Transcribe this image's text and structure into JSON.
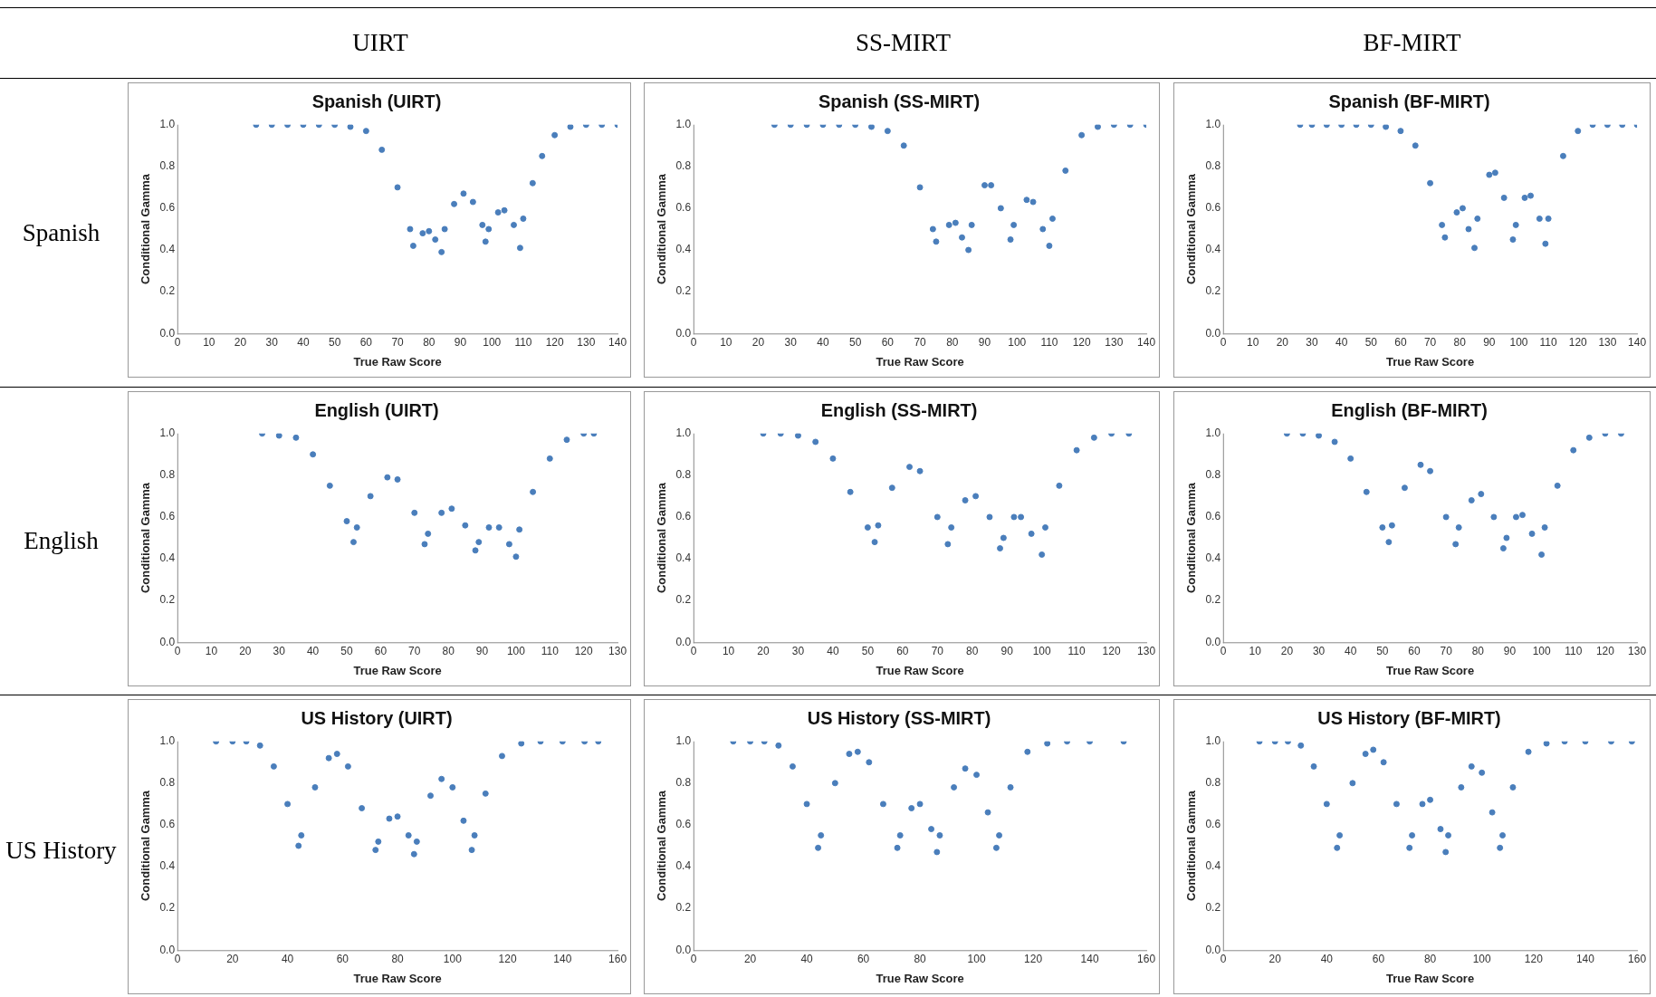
{
  "chart_data": [
    {
      "type": "other",
      "annotations": [
        "UIRT",
        "SS-MIRT",
        "BF-MIRT",
        "Spanish",
        "English",
        "US History"
      ]
    },
    {
      "type": "scatter",
      "title": "Spanish (UIRT)",
      "xlabel": "True Raw Score",
      "ylabel": "Conditional Gamma",
      "color": "#4a7ebb",
      "marker": "circle",
      "grid": false,
      "xlim": [
        0,
        140
      ],
      "xticks": [
        0,
        10,
        20,
        30,
        40,
        50,
        60,
        70,
        80,
        90,
        100,
        110,
        120,
        130,
        140
      ],
      "ylim": [
        0,
        1
      ],
      "yticks": [
        {
          "value": 0,
          "label": "0.0"
        },
        {
          "value": 0.2,
          "label": "0.2"
        },
        {
          "value": 0.4,
          "label": "0.4"
        },
        {
          "value": 0.6,
          "label": "0.6"
        },
        {
          "value": 0.8,
          "label": "0.8"
        },
        {
          "value": 1,
          "label": "1.0"
        }
      ],
      "x": [
        25,
        30,
        35,
        40,
        45,
        50,
        55,
        60,
        65,
        70,
        74,
        75,
        78,
        80,
        82,
        84,
        85,
        88,
        91,
        94,
        97,
        98,
        99,
        102,
        104,
        107,
        109,
        110,
        113,
        116,
        120,
        125,
        130,
        135,
        140
      ],
      "values": [
        1,
        1,
        1,
        1,
        1,
        1,
        0.99,
        0.97,
        0.88,
        0.7,
        0.5,
        0.42,
        0.48,
        0.49,
        0.45,
        0.39,
        0.5,
        0.62,
        0.67,
        0.63,
        0.52,
        0.44,
        0.5,
        0.58,
        0.59,
        0.52,
        0.41,
        0.55,
        0.72,
        0.85,
        0.95,
        0.99,
        1,
        1,
        1
      ]
    },
    {
      "type": "scatter",
      "title": "Spanish (SS-MIRT)",
      "xlabel": "True Raw Score",
      "ylabel": "Conditional Gamma",
      "color": "#4a7ebb",
      "marker": "circle",
      "grid": false,
      "xlim": [
        0,
        140
      ],
      "xticks": [
        0,
        10,
        20,
        30,
        40,
        50,
        60,
        70,
        80,
        90,
        100,
        110,
        120,
        130,
        140
      ],
      "ylim": [
        0,
        1
      ],
      "yticks": [
        {
          "value": 0,
          "label": "0.0"
        },
        {
          "value": 0.2,
          "label": "0.2"
        },
        {
          "value": 0.4,
          "label": "0.4"
        },
        {
          "value": 0.6,
          "label": "0.6"
        },
        {
          "value": 0.8,
          "label": "0.8"
        },
        {
          "value": 1,
          "label": "1.0"
        }
      ],
      "x": [
        25,
        30,
        35,
        40,
        45,
        50,
        55,
        60,
        65,
        70,
        74,
        75,
        79,
        81,
        83,
        85,
        86,
        90,
        92,
        95,
        98,
        99,
        103,
        105,
        108,
        110,
        111,
        115,
        120,
        125,
        130,
        135,
        140
      ],
      "values": [
        1,
        1,
        1,
        1,
        1,
        1,
        0.99,
        0.97,
        0.9,
        0.7,
        0.5,
        0.44,
        0.52,
        0.53,
        0.46,
        0.4,
        0.52,
        0.71,
        0.71,
        0.6,
        0.45,
        0.52,
        0.64,
        0.63,
        0.5,
        0.42,
        0.55,
        0.78,
        0.95,
        0.99,
        1,
        1,
        1
      ]
    },
    {
      "type": "scatter",
      "title": "Spanish (BF-MIRT)",
      "xlabel": "True Raw Score",
      "ylabel": "Conditional Gamma",
      "color": "#4a7ebb",
      "marker": "circle",
      "grid": false,
      "xlim": [
        0,
        140
      ],
      "xticks": [
        0,
        10,
        20,
        30,
        40,
        50,
        60,
        70,
        80,
        90,
        100,
        110,
        120,
        130,
        140
      ],
      "ylim": [
        0,
        1
      ],
      "yticks": [
        {
          "value": 0,
          "label": "0.0"
        },
        {
          "value": 0.2,
          "label": "0.2"
        },
        {
          "value": 0.4,
          "label": "0.4"
        },
        {
          "value": 0.6,
          "label": "0.6"
        },
        {
          "value": 0.8,
          "label": "0.8"
        },
        {
          "value": 1,
          "label": "1.0"
        }
      ],
      "x": [
        26,
        30,
        35,
        40,
        45,
        50,
        55,
        60,
        65,
        70,
        74,
        75,
        79,
        81,
        83,
        85,
        86,
        90,
        92,
        95,
        98,
        99,
        102,
        104,
        107,
        109,
        110,
        115,
        120,
        125,
        130,
        135,
        140
      ],
      "values": [
        1,
        1,
        1,
        1,
        1,
        1,
        0.99,
        0.97,
        0.9,
        0.72,
        0.52,
        0.46,
        0.58,
        0.6,
        0.5,
        0.41,
        0.55,
        0.76,
        0.77,
        0.65,
        0.45,
        0.52,
        0.65,
        0.66,
        0.55,
        0.43,
        0.55,
        0.85,
        0.97,
        1,
        1,
        1,
        1
      ]
    },
    {
      "type": "scatter",
      "title": "English (UIRT)",
      "xlabel": "True Raw Score",
      "ylabel": "Conditional Gamma",
      "color": "#4a7ebb",
      "marker": "circle",
      "grid": false,
      "xlim": [
        0,
        130
      ],
      "xticks": [
        0,
        10,
        20,
        30,
        40,
        50,
        60,
        70,
        80,
        90,
        100,
        110,
        120,
        130
      ],
      "ylim": [
        0,
        1
      ],
      "yticks": [
        {
          "value": 0,
          "label": "0.0"
        },
        {
          "value": 0.2,
          "label": "0.2"
        },
        {
          "value": 0.4,
          "label": "0.4"
        },
        {
          "value": 0.6,
          "label": "0.6"
        },
        {
          "value": 0.8,
          "label": "0.8"
        },
        {
          "value": 1,
          "label": "1.0"
        }
      ],
      "x": [
        25,
        30,
        35,
        40,
        45,
        50,
        52,
        53,
        57,
        62,
        65,
        70,
        73,
        74,
        78,
        81,
        85,
        88,
        89,
        92,
        95,
        98,
        100,
        101,
        105,
        110,
        115,
        120,
        123
      ],
      "values": [
        1,
        0.99,
        0.98,
        0.9,
        0.75,
        0.58,
        0.48,
        0.55,
        0.7,
        0.79,
        0.78,
        0.62,
        0.47,
        0.52,
        0.62,
        0.64,
        0.56,
        0.44,
        0.48,
        0.55,
        0.55,
        0.47,
        0.41,
        0.54,
        0.72,
        0.88,
        0.97,
        1,
        1
      ]
    },
    {
      "type": "scatter",
      "title": "English (SS-MIRT)",
      "xlabel": "True Raw Score",
      "ylabel": "Conditional Gamma",
      "color": "#4a7ebb",
      "marker": "circle",
      "grid": false,
      "xlim": [
        0,
        130
      ],
      "xticks": [
        0,
        10,
        20,
        30,
        40,
        50,
        60,
        70,
        80,
        90,
        100,
        110,
        120,
        130
      ],
      "ylim": [
        0,
        1
      ],
      "yticks": [
        {
          "value": 0,
          "label": "0.0"
        },
        {
          "value": 0.2,
          "label": "0.2"
        },
        {
          "value": 0.4,
          "label": "0.4"
        },
        {
          "value": 0.6,
          "label": "0.6"
        },
        {
          "value": 0.8,
          "label": "0.8"
        },
        {
          "value": 1,
          "label": "1.0"
        }
      ],
      "x": [
        20,
        25,
        30,
        35,
        40,
        45,
        50,
        52,
        53,
        57,
        62,
        65,
        70,
        73,
        74,
        78,
        81,
        85,
        88,
        89,
        92,
        94,
        97,
        100,
        101,
        105,
        110,
        115,
        120,
        125
      ],
      "values": [
        1,
        1,
        0.99,
        0.96,
        0.88,
        0.72,
        0.55,
        0.48,
        0.56,
        0.74,
        0.84,
        0.82,
        0.6,
        0.47,
        0.55,
        0.68,
        0.7,
        0.6,
        0.45,
        0.5,
        0.6,
        0.6,
        0.52,
        0.42,
        0.55,
        0.75,
        0.92,
        0.98,
        1,
        1
      ]
    },
    {
      "type": "scatter",
      "title": "English (BF-MIRT)",
      "xlabel": "True Raw Score",
      "ylabel": "Conditional Gamma",
      "color": "#4a7ebb",
      "marker": "circle",
      "grid": false,
      "xlim": [
        0,
        130
      ],
      "xticks": [
        0,
        10,
        20,
        30,
        40,
        50,
        60,
        70,
        80,
        90,
        100,
        110,
        120,
        130
      ],
      "ylim": [
        0,
        1
      ],
      "yticks": [
        {
          "value": 0,
          "label": "0.0"
        },
        {
          "value": 0.2,
          "label": "0.2"
        },
        {
          "value": 0.4,
          "label": "0.4"
        },
        {
          "value": 0.6,
          "label": "0.6"
        },
        {
          "value": 0.8,
          "label": "0.8"
        },
        {
          "value": 1,
          "label": "1.0"
        }
      ],
      "x": [
        20,
        25,
        30,
        35,
        40,
        45,
        50,
        52,
        53,
        57,
        62,
        65,
        70,
        73,
        74,
        78,
        81,
        85,
        88,
        89,
        92,
        94,
        97,
        100,
        101,
        105,
        110,
        115,
        120,
        125
      ],
      "values": [
        1,
        1,
        0.99,
        0.96,
        0.88,
        0.72,
        0.55,
        0.48,
        0.56,
        0.74,
        0.85,
        0.82,
        0.6,
        0.47,
        0.55,
        0.68,
        0.71,
        0.6,
        0.45,
        0.5,
        0.6,
        0.61,
        0.52,
        0.42,
        0.55,
        0.75,
        0.92,
        0.98,
        1,
        1
      ]
    },
    {
      "type": "scatter",
      "title": "US History (UIRT)",
      "xlabel": "True Raw Score",
      "ylabel": "Conditional Gamma",
      "color": "#4a7ebb",
      "marker": "circle",
      "grid": false,
      "xlim": [
        0,
        160
      ],
      "xticks": [
        0,
        20,
        40,
        60,
        80,
        100,
        120,
        140,
        160
      ],
      "ylim": [
        0,
        1
      ],
      "yticks": [
        {
          "value": 0,
          "label": "0.0"
        },
        {
          "value": 0.2,
          "label": "0.2"
        },
        {
          "value": 0.4,
          "label": "0.4"
        },
        {
          "value": 0.6,
          "label": "0.6"
        },
        {
          "value": 0.8,
          "label": "0.8"
        },
        {
          "value": 1,
          "label": "1.0"
        }
      ],
      "x": [
        14,
        20,
        25,
        30,
        35,
        40,
        44,
        45,
        50,
        55,
        58,
        62,
        67,
        72,
        73,
        77,
        80,
        84,
        86,
        87,
        92,
        96,
        100,
        104,
        107,
        108,
        112,
        118,
        125,
        132,
        140,
        148,
        153
      ],
      "values": [
        1,
        1,
        1,
        0.98,
        0.88,
        0.7,
        0.5,
        0.55,
        0.78,
        0.92,
        0.94,
        0.88,
        0.68,
        0.48,
        0.52,
        0.63,
        0.64,
        0.55,
        0.46,
        0.52,
        0.74,
        0.82,
        0.78,
        0.62,
        0.48,
        0.55,
        0.75,
        0.93,
        0.99,
        1,
        1,
        1,
        1
      ]
    },
    {
      "type": "scatter",
      "title": "US History (SS-MIRT)",
      "xlabel": "True Raw Score",
      "ylabel": "Conditional Gamma",
      "color": "#4a7ebb",
      "marker": "circle",
      "grid": false,
      "xlim": [
        0,
        160
      ],
      "xticks": [
        0,
        20,
        40,
        60,
        80,
        100,
        120,
        140,
        160
      ],
      "ylim": [
        0,
        1
      ],
      "yticks": [
        {
          "value": 0,
          "label": "0.0"
        },
        {
          "value": 0.2,
          "label": "0.2"
        },
        {
          "value": 0.4,
          "label": "0.4"
        },
        {
          "value": 0.6,
          "label": "0.6"
        },
        {
          "value": 0.8,
          "label": "0.8"
        },
        {
          "value": 1,
          "label": "1.0"
        }
      ],
      "x": [
        14,
        20,
        25,
        30,
        35,
        40,
        44,
        45,
        50,
        55,
        58,
        62,
        67,
        72,
        73,
        77,
        80,
        84,
        86,
        87,
        92,
        96,
        100,
        104,
        107,
        108,
        112,
        118,
        125,
        132,
        140,
        152
      ],
      "values": [
        1,
        1,
        1,
        0.98,
        0.88,
        0.7,
        0.49,
        0.55,
        0.8,
        0.94,
        0.95,
        0.9,
        0.7,
        0.49,
        0.55,
        0.68,
        0.7,
        0.58,
        0.47,
        0.55,
        0.78,
        0.87,
        0.84,
        0.66,
        0.49,
        0.55,
        0.78,
        0.95,
        0.99,
        1,
        1,
        1
      ]
    },
    {
      "type": "scatter",
      "title": "US History (BF-MIRT)",
      "xlabel": "True Raw Score",
      "ylabel": "Conditional Gamma",
      "color": "#4a7ebb",
      "marker": "circle",
      "grid": false,
      "xlim": [
        0,
        160
      ],
      "xticks": [
        0,
        20,
        40,
        60,
        80,
        100,
        120,
        140,
        160
      ],
      "ylim": [
        0,
        1
      ],
      "yticks": [
        {
          "value": 0,
          "label": "0.0"
        },
        {
          "value": 0.2,
          "label": "0.2"
        },
        {
          "value": 0.4,
          "label": "0.4"
        },
        {
          "value": 0.6,
          "label": "0.6"
        },
        {
          "value": 0.8,
          "label": "0.8"
        },
        {
          "value": 1,
          "label": "1.0"
        }
      ],
      "x": [
        14,
        20,
        25,
        30,
        35,
        40,
        44,
        45,
        50,
        55,
        58,
        62,
        67,
        72,
        73,
        77,
        80,
        84,
        86,
        87,
        92,
        96,
        100,
        104,
        107,
        108,
        112,
        118,
        125,
        132,
        140,
        150,
        158
      ],
      "values": [
        1,
        1,
        1,
        0.98,
        0.88,
        0.7,
        0.49,
        0.55,
        0.8,
        0.94,
        0.96,
        0.9,
        0.7,
        0.49,
        0.55,
        0.7,
        0.72,
        0.58,
        0.47,
        0.55,
        0.78,
        0.88,
        0.85,
        0.66,
        0.49,
        0.55,
        0.78,
        0.95,
        0.99,
        1,
        1,
        1,
        1
      ]
    }
  ]
}
